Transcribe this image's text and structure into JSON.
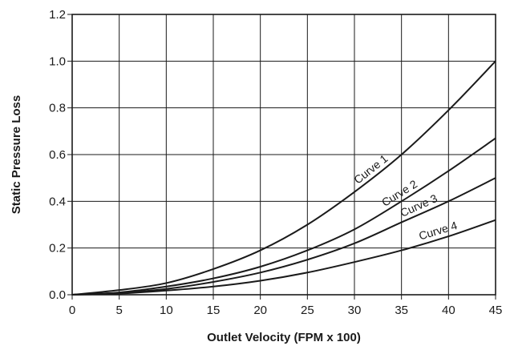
{
  "chart_data": {
    "type": "line",
    "title": "",
    "xlabel": "Outlet Velocity (FPM x 100)",
    "ylabel": "Static Pressure Loss",
    "xlim": [
      0,
      45
    ],
    "ylim": [
      0.0,
      1.2
    ],
    "x_ticks": [
      "0",
      "5",
      "10",
      "15",
      "20",
      "25",
      "30",
      "35",
      "40",
      "45"
    ],
    "y_ticks": [
      "0.0",
      "0.2",
      "0.4",
      "0.6",
      "0.8",
      "1.0",
      "1.2"
    ],
    "grid": true,
    "legend": "none",
    "line_color": "#1a1a1a",
    "series": [
      {
        "name": "Curve 1",
        "x": [
          0,
          5,
          10,
          15,
          20,
          25,
          30,
          35,
          40,
          45
        ],
        "y": [
          0.0,
          0.02,
          0.05,
          0.11,
          0.19,
          0.3,
          0.44,
          0.6,
          0.79,
          1.0
        ]
      },
      {
        "name": "Curve 2",
        "x": [
          0,
          5,
          10,
          15,
          20,
          25,
          30,
          35,
          40,
          45
        ],
        "y": [
          0.0,
          0.01,
          0.035,
          0.07,
          0.12,
          0.19,
          0.28,
          0.4,
          0.53,
          0.67
        ]
      },
      {
        "name": "Curve 3",
        "x": [
          0,
          5,
          10,
          15,
          20,
          25,
          30,
          35,
          40,
          45
        ],
        "y": [
          0.0,
          0.008,
          0.025,
          0.055,
          0.095,
          0.15,
          0.22,
          0.31,
          0.4,
          0.5
        ]
      },
      {
        "name": "Curve 4",
        "x": [
          0,
          5,
          10,
          15,
          20,
          25,
          30,
          35,
          40,
          45
        ],
        "y": [
          0.0,
          0.005,
          0.018,
          0.035,
          0.06,
          0.095,
          0.14,
          0.19,
          0.25,
          0.32
        ]
      }
    ]
  }
}
